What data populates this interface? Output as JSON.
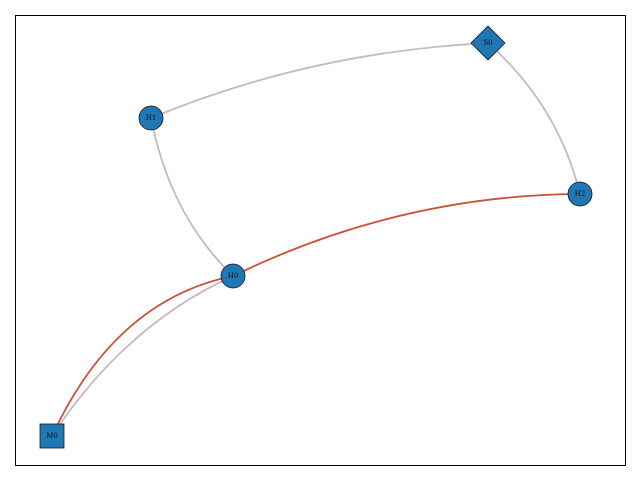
{
  "colors": {
    "node_fill": "#1f77b4",
    "edge_default": "#c7b9bd",
    "edge_highlight": "#c9523a",
    "frame": "#000000"
  },
  "nodes": [
    {
      "id": "S0",
      "label": "S0",
      "shape": "diamond"
    },
    {
      "id": "H1",
      "label": "H1",
      "shape": "circle"
    },
    {
      "id": "H2",
      "label": "H2",
      "shape": "circle"
    },
    {
      "id": "H0",
      "label": "H0",
      "shape": "circle"
    },
    {
      "id": "M0",
      "label": "M0",
      "shape": "square"
    }
  ],
  "edges": [
    {
      "from": "H1",
      "to": "S0",
      "highlight": false
    },
    {
      "from": "S0",
      "to": "H2",
      "highlight": false
    },
    {
      "from": "H1",
      "to": "H0",
      "highlight": false
    },
    {
      "from": "M0",
      "to": "H0",
      "highlight": false
    },
    {
      "from": "M0",
      "to": "H0",
      "highlight": true
    },
    {
      "from": "H0",
      "to": "H2",
      "highlight": true
    }
  ]
}
